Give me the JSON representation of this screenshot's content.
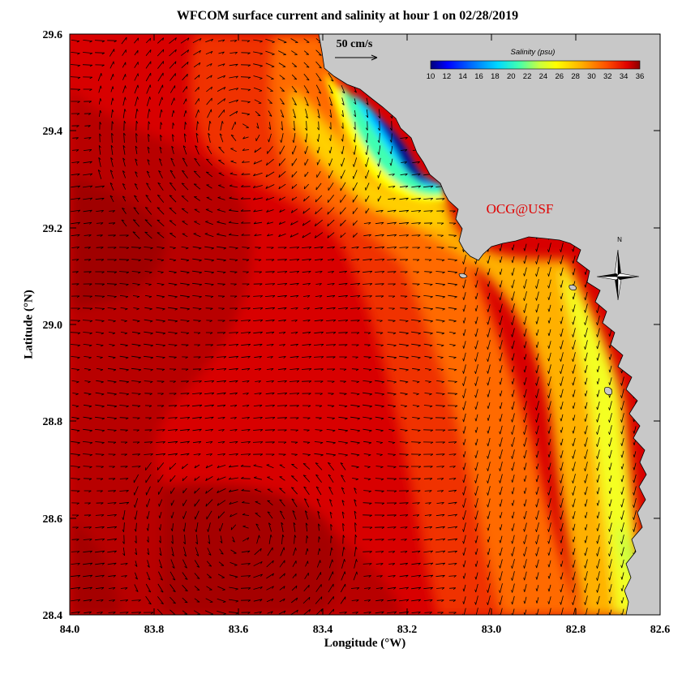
{
  "title": "WFCOM surface current and salinity at hour 1 on 02/28/2019",
  "xlabel": "Longitude (°W)",
  "ylabel": "Latitude (°N)",
  "x_ticks": [
    "84.0",
    "83.8",
    "83.6",
    "83.4",
    "83.2",
    "83.0",
    "82.8",
    "82.6"
  ],
  "y_ticks": [
    "29.6",
    "29.4",
    "29.2",
    "29.0",
    "28.8",
    "28.6",
    "28.4"
  ],
  "scale_label": "50 cm/s",
  "colorbar": {
    "title": "Salinity (psu)",
    "ticks": [
      "10",
      "12",
      "14",
      "16",
      "18",
      "20",
      "22",
      "24",
      "26",
      "28",
      "30",
      "32",
      "34",
      "36"
    ]
  },
  "watermark": "OCG@USF",
  "compass_label": "N",
  "colors": {
    "land": "#c8c8c8",
    "watermark": "#e00000",
    "open_water": "#c80000",
    "offshore_deep": "#a80000"
  },
  "chart_data": {
    "type": "heatmap",
    "variable": "salinity",
    "units": "psu",
    "xlim": [
      84.0,
      82.6
    ],
    "ylim": [
      28.4,
      29.6
    ],
    "color_range": [
      10,
      36
    ],
    "vector_field": "surface current",
    "vector_scale_cm_s": 50
  }
}
